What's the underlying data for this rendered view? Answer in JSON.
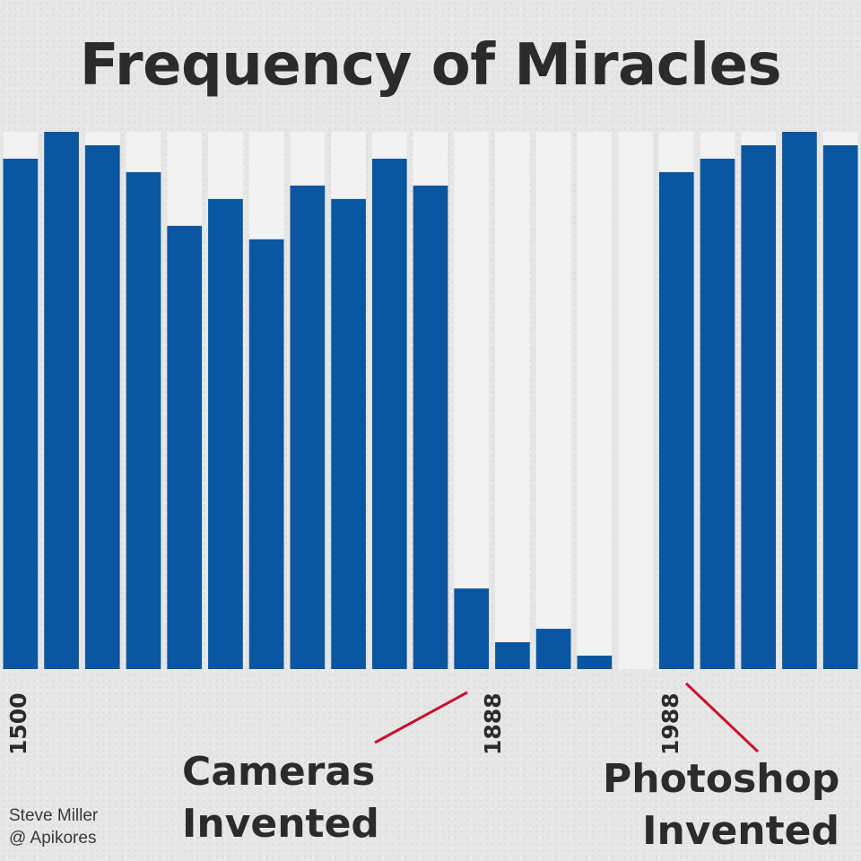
{
  "chart_data": {
    "type": "bar",
    "title": "Frequency of Miracles",
    "x_tick_labels": [
      "1500",
      "1888",
      "1988"
    ],
    "values": [
      95,
      100,
      97.5,
      92.5,
      82.5,
      87.5,
      80,
      90,
      87.5,
      95,
      90,
      15,
      5,
      7.5,
      2.5,
      0,
      92.5,
      95,
      97.5,
      100,
      97.5
    ],
    "ylim": [
      0,
      100
    ],
    "colors": {
      "bar": "#0a56a0",
      "column_bg": "#f2f2f2",
      "annotation_line": "#c8102e"
    },
    "annotations": [
      {
        "line1": "Cameras",
        "line2": "Invented",
        "points_to": "1888"
      },
      {
        "line1": "Photoshop",
        "line2": "Invented",
        "points_to": "1988"
      }
    ],
    "credit": {
      "line1": "Steve Miller",
      "line2": "@ Apikores"
    }
  }
}
